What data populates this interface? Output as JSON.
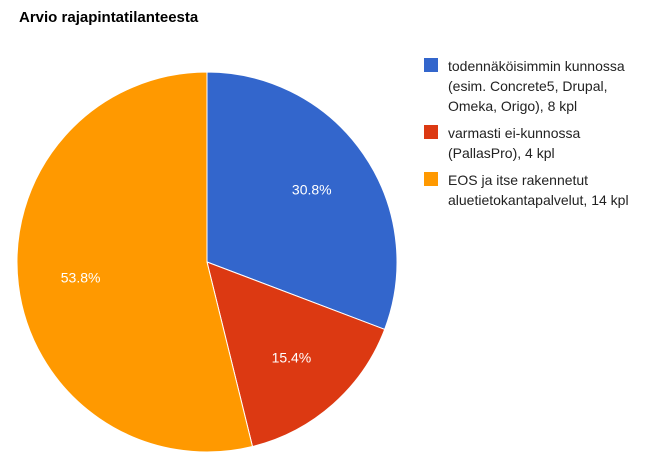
{
  "chart_data": {
    "type": "pie",
    "title": "Arvio rajapintatilanteesta",
    "legend_position": "right",
    "slices": [
      {
        "label": "todennäköisimmin kunnossa (esim. Concrete5, Drupal, Omeka, Origo), 8 kpl",
        "value": 8,
        "percent_label": "30.8%",
        "color": "#3366cc"
      },
      {
        "label": "varmasti ei-kunnossa (PallasPro), 4 kpl",
        "value": 4,
        "percent_label": "15.4%",
        "color": "#dc3912"
      },
      {
        "label": "EOS ja itse rakennetut aluetietokantapalvelut, 14 kpl",
        "value": 14,
        "percent_label": "53.8%",
        "color": "#ff9900"
      }
    ]
  }
}
